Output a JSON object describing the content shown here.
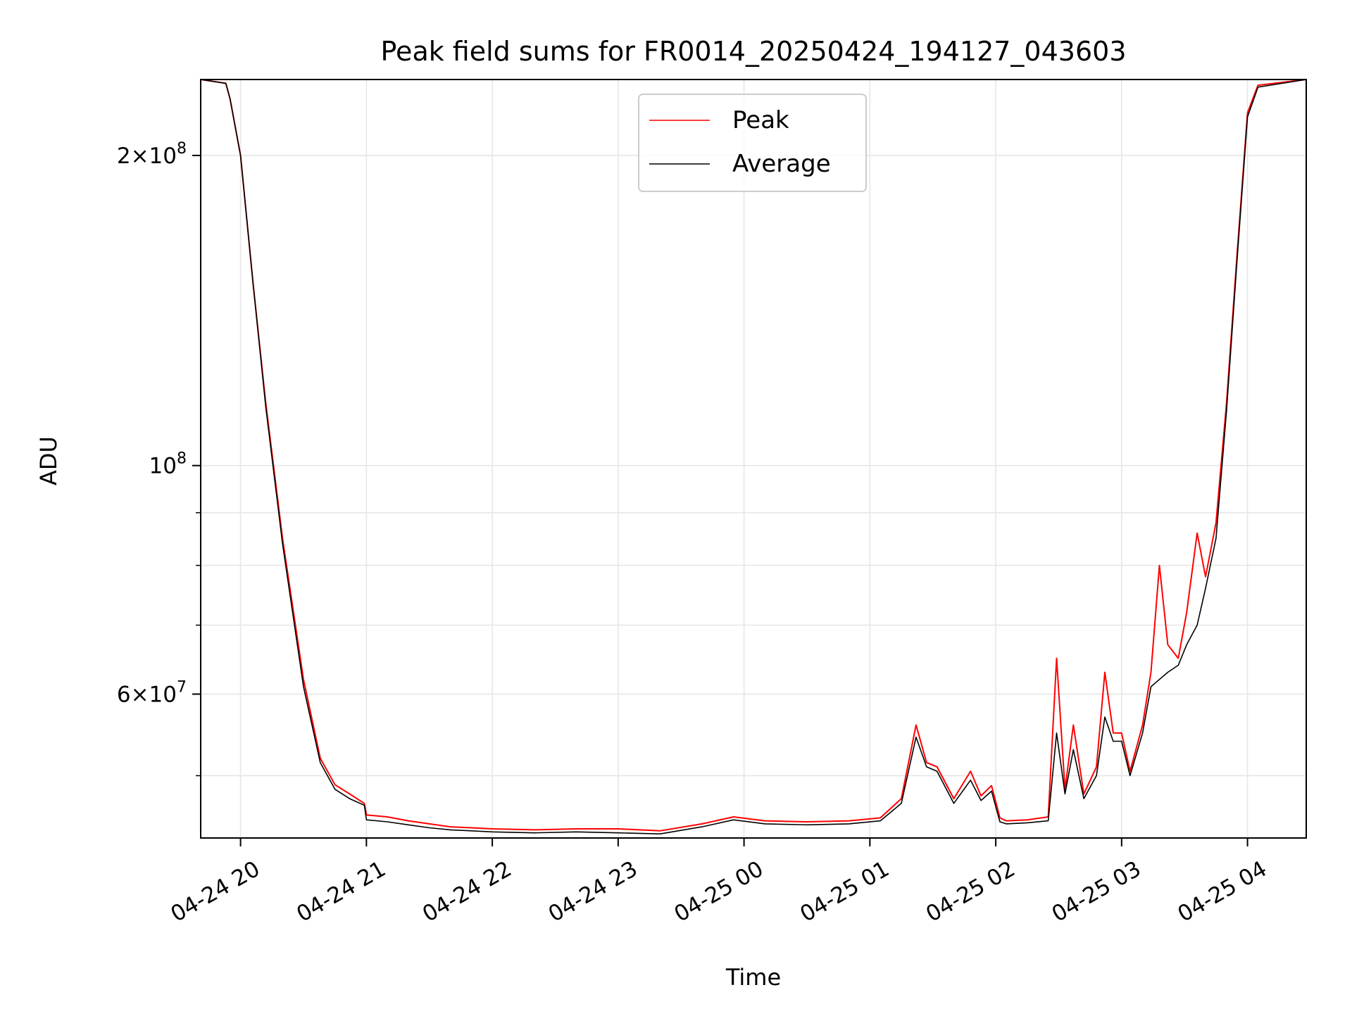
{
  "chart_data": {
    "type": "line",
    "title": "Peak field sums for FR0014_20250424_194127_043603",
    "xlabel": "Time",
    "ylabel": "ADU",
    "yscale": "log",
    "grid": true,
    "legend_position": "top-center",
    "x_range": [
      "2025-04-24 19:41",
      "2025-04-25 04:28"
    ],
    "ylim": [
      43500000,
      237000000
    ],
    "x_ticks": [
      {
        "x": "2025-04-24 20:00",
        "label": "04-24 20"
      },
      {
        "x": "2025-04-24 21:00",
        "label": "04-24 21"
      },
      {
        "x": "2025-04-24 22:00",
        "label": "04-24 22"
      },
      {
        "x": "2025-04-24 23:00",
        "label": "04-24 23"
      },
      {
        "x": "2025-04-25 00:00",
        "label": "04-25 00"
      },
      {
        "x": "2025-04-25 01:00",
        "label": "04-25 01"
      },
      {
        "x": "2025-04-25 02:00",
        "label": "04-25 02"
      },
      {
        "x": "2025-04-25 03:00",
        "label": "04-25 03"
      },
      {
        "x": "2025-04-25 04:00",
        "label": "04-25 04"
      }
    ],
    "y_ticks_major": [
      {
        "value": 60000000,
        "base": "6",
        "exp": "7"
      },
      {
        "value": 100000000,
        "base": "",
        "exp": "8"
      },
      {
        "value": 200000000,
        "base": "2",
        "exp": "8"
      }
    ],
    "y_ticks_minor": [
      50000000,
      70000000,
      80000000,
      90000000
    ],
    "series": [
      {
        "name": "Peak",
        "color": "#ff0000",
        "x": [
          "2025-04-24 19:41",
          "2025-04-24 19:53",
          "2025-04-24 19:55",
          "2025-04-24 20:00",
          "2025-04-24 20:06",
          "2025-04-24 20:12",
          "2025-04-24 20:20",
          "2025-04-24 20:30",
          "2025-04-24 20:38",
          "2025-04-24 20:45",
          "2025-04-24 20:52",
          "2025-04-24 20:59",
          "2025-04-24 21:00",
          "2025-04-24 21:10",
          "2025-04-24 21:20",
          "2025-04-24 21:30",
          "2025-04-24 21:40",
          "2025-04-24 21:50",
          "2025-04-24 22:00",
          "2025-04-24 22:20",
          "2025-04-24 22:40",
          "2025-04-24 23:00",
          "2025-04-24 23:20",
          "2025-04-24 23:40",
          "2025-04-24 23:55",
          "2025-04-25 00:10",
          "2025-04-25 00:30",
          "2025-04-25 00:50",
          "2025-04-25 01:05",
          "2025-04-25 01:15",
          "2025-04-25 01:22",
          "2025-04-25 01:27",
          "2025-04-25 01:32",
          "2025-04-25 01:40",
          "2025-04-25 01:48",
          "2025-04-25 01:53",
          "2025-04-25 01:58",
          "2025-04-25 02:02",
          "2025-04-25 02:05",
          "2025-04-25 02:15",
          "2025-04-25 02:25",
          "2025-04-25 02:29",
          "2025-04-25 02:33",
          "2025-04-25 02:37",
          "2025-04-25 02:42",
          "2025-04-25 02:48",
          "2025-04-25 02:52",
          "2025-04-25 02:56",
          "2025-04-25 03:00",
          "2025-04-25 03:04",
          "2025-04-25 03:10",
          "2025-04-25 03:14",
          "2025-04-25 03:18",
          "2025-04-25 03:22",
          "2025-04-25 03:27",
          "2025-04-25 03:31",
          "2025-04-25 03:36",
          "2025-04-25 03:40",
          "2025-04-25 03:45",
          "2025-04-25 03:50",
          "2025-04-25 03:55",
          "2025-04-25 04:00",
          "2025-04-25 04:05",
          "2025-04-25 04:28"
        ],
        "y": [
          237000000,
          235000000,
          227000000,
          200000000,
          150000000,
          115000000,
          85000000,
          62000000,
          52000000,
          49000000,
          48000000,
          47000000,
          45800000,
          45600000,
          45200000,
          44900000,
          44600000,
          44500000,
          44400000,
          44300000,
          44400000,
          44400000,
          44200000,
          44900000,
          45600000,
          45200000,
          45100000,
          45200000,
          45500000,
          47500000,
          56000000,
          51500000,
          51000000,
          47500000,
          50500000,
          47800000,
          48900000,
          45500000,
          45200000,
          45300000,
          45600000,
          65000000,
          48500000,
          56000000,
          48000000,
          51000000,
          63000000,
          55000000,
          55000000,
          50500000,
          56000000,
          63000000,
          80000000,
          67000000,
          65000000,
          72000000,
          86000000,
          78000000,
          88000000,
          115000000,
          160000000,
          220000000,
          234000000,
          237000000
        ]
      },
      {
        "name": "Average",
        "color": "#000000",
        "x": [
          "2025-04-24 19:41",
          "2025-04-24 19:53",
          "2025-04-24 19:55",
          "2025-04-24 20:00",
          "2025-04-24 20:06",
          "2025-04-24 20:12",
          "2025-04-24 20:20",
          "2025-04-24 20:30",
          "2025-04-24 20:38",
          "2025-04-24 20:45",
          "2025-04-24 20:52",
          "2025-04-24 20:59",
          "2025-04-24 21:00",
          "2025-04-24 21:10",
          "2025-04-24 21:20",
          "2025-04-24 21:30",
          "2025-04-24 21:40",
          "2025-04-24 21:50",
          "2025-04-24 22:00",
          "2025-04-24 22:20",
          "2025-04-24 22:40",
          "2025-04-24 23:00",
          "2025-04-24 23:20",
          "2025-04-24 23:40",
          "2025-04-24 23:55",
          "2025-04-25 00:10",
          "2025-04-25 00:30",
          "2025-04-25 00:50",
          "2025-04-25 01:05",
          "2025-04-25 01:15",
          "2025-04-25 01:22",
          "2025-04-25 01:27",
          "2025-04-25 01:32",
          "2025-04-25 01:40",
          "2025-04-25 01:48",
          "2025-04-25 01:53",
          "2025-04-25 01:58",
          "2025-04-25 02:02",
          "2025-04-25 02:05",
          "2025-04-25 02:15",
          "2025-04-25 02:25",
          "2025-04-25 02:29",
          "2025-04-25 02:33",
          "2025-04-25 02:37",
          "2025-04-25 02:42",
          "2025-04-25 02:48",
          "2025-04-25 02:52",
          "2025-04-25 02:56",
          "2025-04-25 03:00",
          "2025-04-25 03:04",
          "2025-04-25 03:10",
          "2025-04-25 03:14",
          "2025-04-25 03:18",
          "2025-04-25 03:22",
          "2025-04-25 03:27",
          "2025-04-25 03:31",
          "2025-04-25 03:36",
          "2025-04-25 03:40",
          "2025-04-25 03:45",
          "2025-04-25 03:50",
          "2025-04-25 03:55",
          "2025-04-25 04:00",
          "2025-04-25 04:05",
          "2025-04-25 04:28"
        ],
        "y": [
          237000000,
          235000000,
          227000000,
          200000000,
          150000000,
          114000000,
          84000000,
          61000000,
          51500000,
          48500000,
          47500000,
          46800000,
          45300000,
          45100000,
          44800000,
          44500000,
          44300000,
          44200000,
          44100000,
          44000000,
          44100000,
          44000000,
          43900000,
          44600000,
          45300000,
          44900000,
          44800000,
          44900000,
          45200000,
          47000000,
          54500000,
          51000000,
          50500000,
          47000000,
          49500000,
          47300000,
          48300000,
          45100000,
          44900000,
          45000000,
          45200000,
          55000000,
          48000000,
          53000000,
          47500000,
          50000000,
          57000000,
          54000000,
          54000000,
          50000000,
          55000000,
          61000000,
          62000000,
          63000000,
          64000000,
          67000000,
          70000000,
          76000000,
          85000000,
          113000000,
          158000000,
          218000000,
          233000000,
          237000000
        ]
      }
    ]
  }
}
